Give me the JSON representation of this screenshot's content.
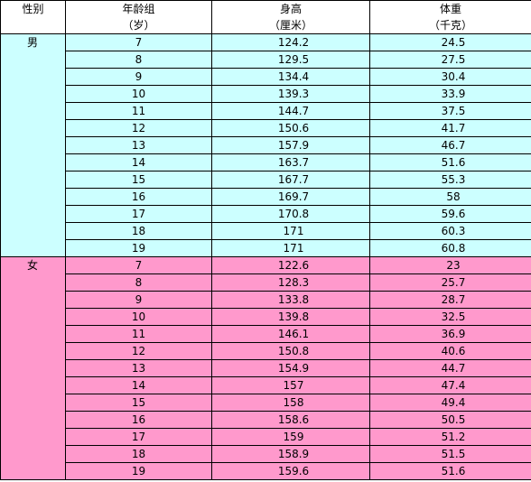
{
  "headers": {
    "sex": "性别",
    "age_line1": "年龄组",
    "age_line2": "（岁）",
    "height_line1": "身高",
    "height_line2": "（厘米）",
    "weight_line1": "体重",
    "weight_line2": "（千克）"
  },
  "groups": [
    {
      "sex": "男",
      "color": "#ccffff",
      "rows": [
        {
          "age": "7",
          "height": "124.2",
          "weight": "24.5"
        },
        {
          "age": "8",
          "height": "129.5",
          "weight": "27.5"
        },
        {
          "age": "9",
          "height": "134.4",
          "weight": "30.4"
        },
        {
          "age": "10",
          "height": "139.3",
          "weight": "33.9"
        },
        {
          "age": "11",
          "height": "144.7",
          "weight": "37.5"
        },
        {
          "age": "12",
          "height": "150.6",
          "weight": "41.7"
        },
        {
          "age": "13",
          "height": "157.9",
          "weight": "46.7"
        },
        {
          "age": "14",
          "height": "163.7",
          "weight": "51.6"
        },
        {
          "age": "15",
          "height": "167.7",
          "weight": "55.3"
        },
        {
          "age": "16",
          "height": "169.7",
          "weight": "58"
        },
        {
          "age": "17",
          "height": "170.8",
          "weight": "59.6"
        },
        {
          "age": "18",
          "height": "171",
          "weight": "60.3"
        },
        {
          "age": "19",
          "height": "171",
          "weight": "60.8"
        }
      ]
    },
    {
      "sex": "女",
      "color": "#ff99cc",
      "rows": [
        {
          "age": "7",
          "height": "122.6",
          "weight": "23"
        },
        {
          "age": "8",
          "height": "128.3",
          "weight": "25.7"
        },
        {
          "age": "9",
          "height": "133.8",
          "weight": "28.7"
        },
        {
          "age": "10",
          "height": "139.8",
          "weight": "32.5"
        },
        {
          "age": "11",
          "height": "146.1",
          "weight": "36.9"
        },
        {
          "age": "12",
          "height": "150.8",
          "weight": "40.6"
        },
        {
          "age": "13",
          "height": "154.9",
          "weight": "44.7"
        },
        {
          "age": "14",
          "height": "157",
          "weight": "47.4"
        },
        {
          "age": "15",
          "height": "158",
          "weight": "49.4"
        },
        {
          "age": "16",
          "height": "158.6",
          "weight": "50.5"
        },
        {
          "age": "17",
          "height": "159",
          "weight": "51.2"
        },
        {
          "age": "18",
          "height": "158.9",
          "weight": "51.5"
        },
        {
          "age": "19",
          "height": "159.6",
          "weight": "51.6"
        }
      ]
    }
  ]
}
